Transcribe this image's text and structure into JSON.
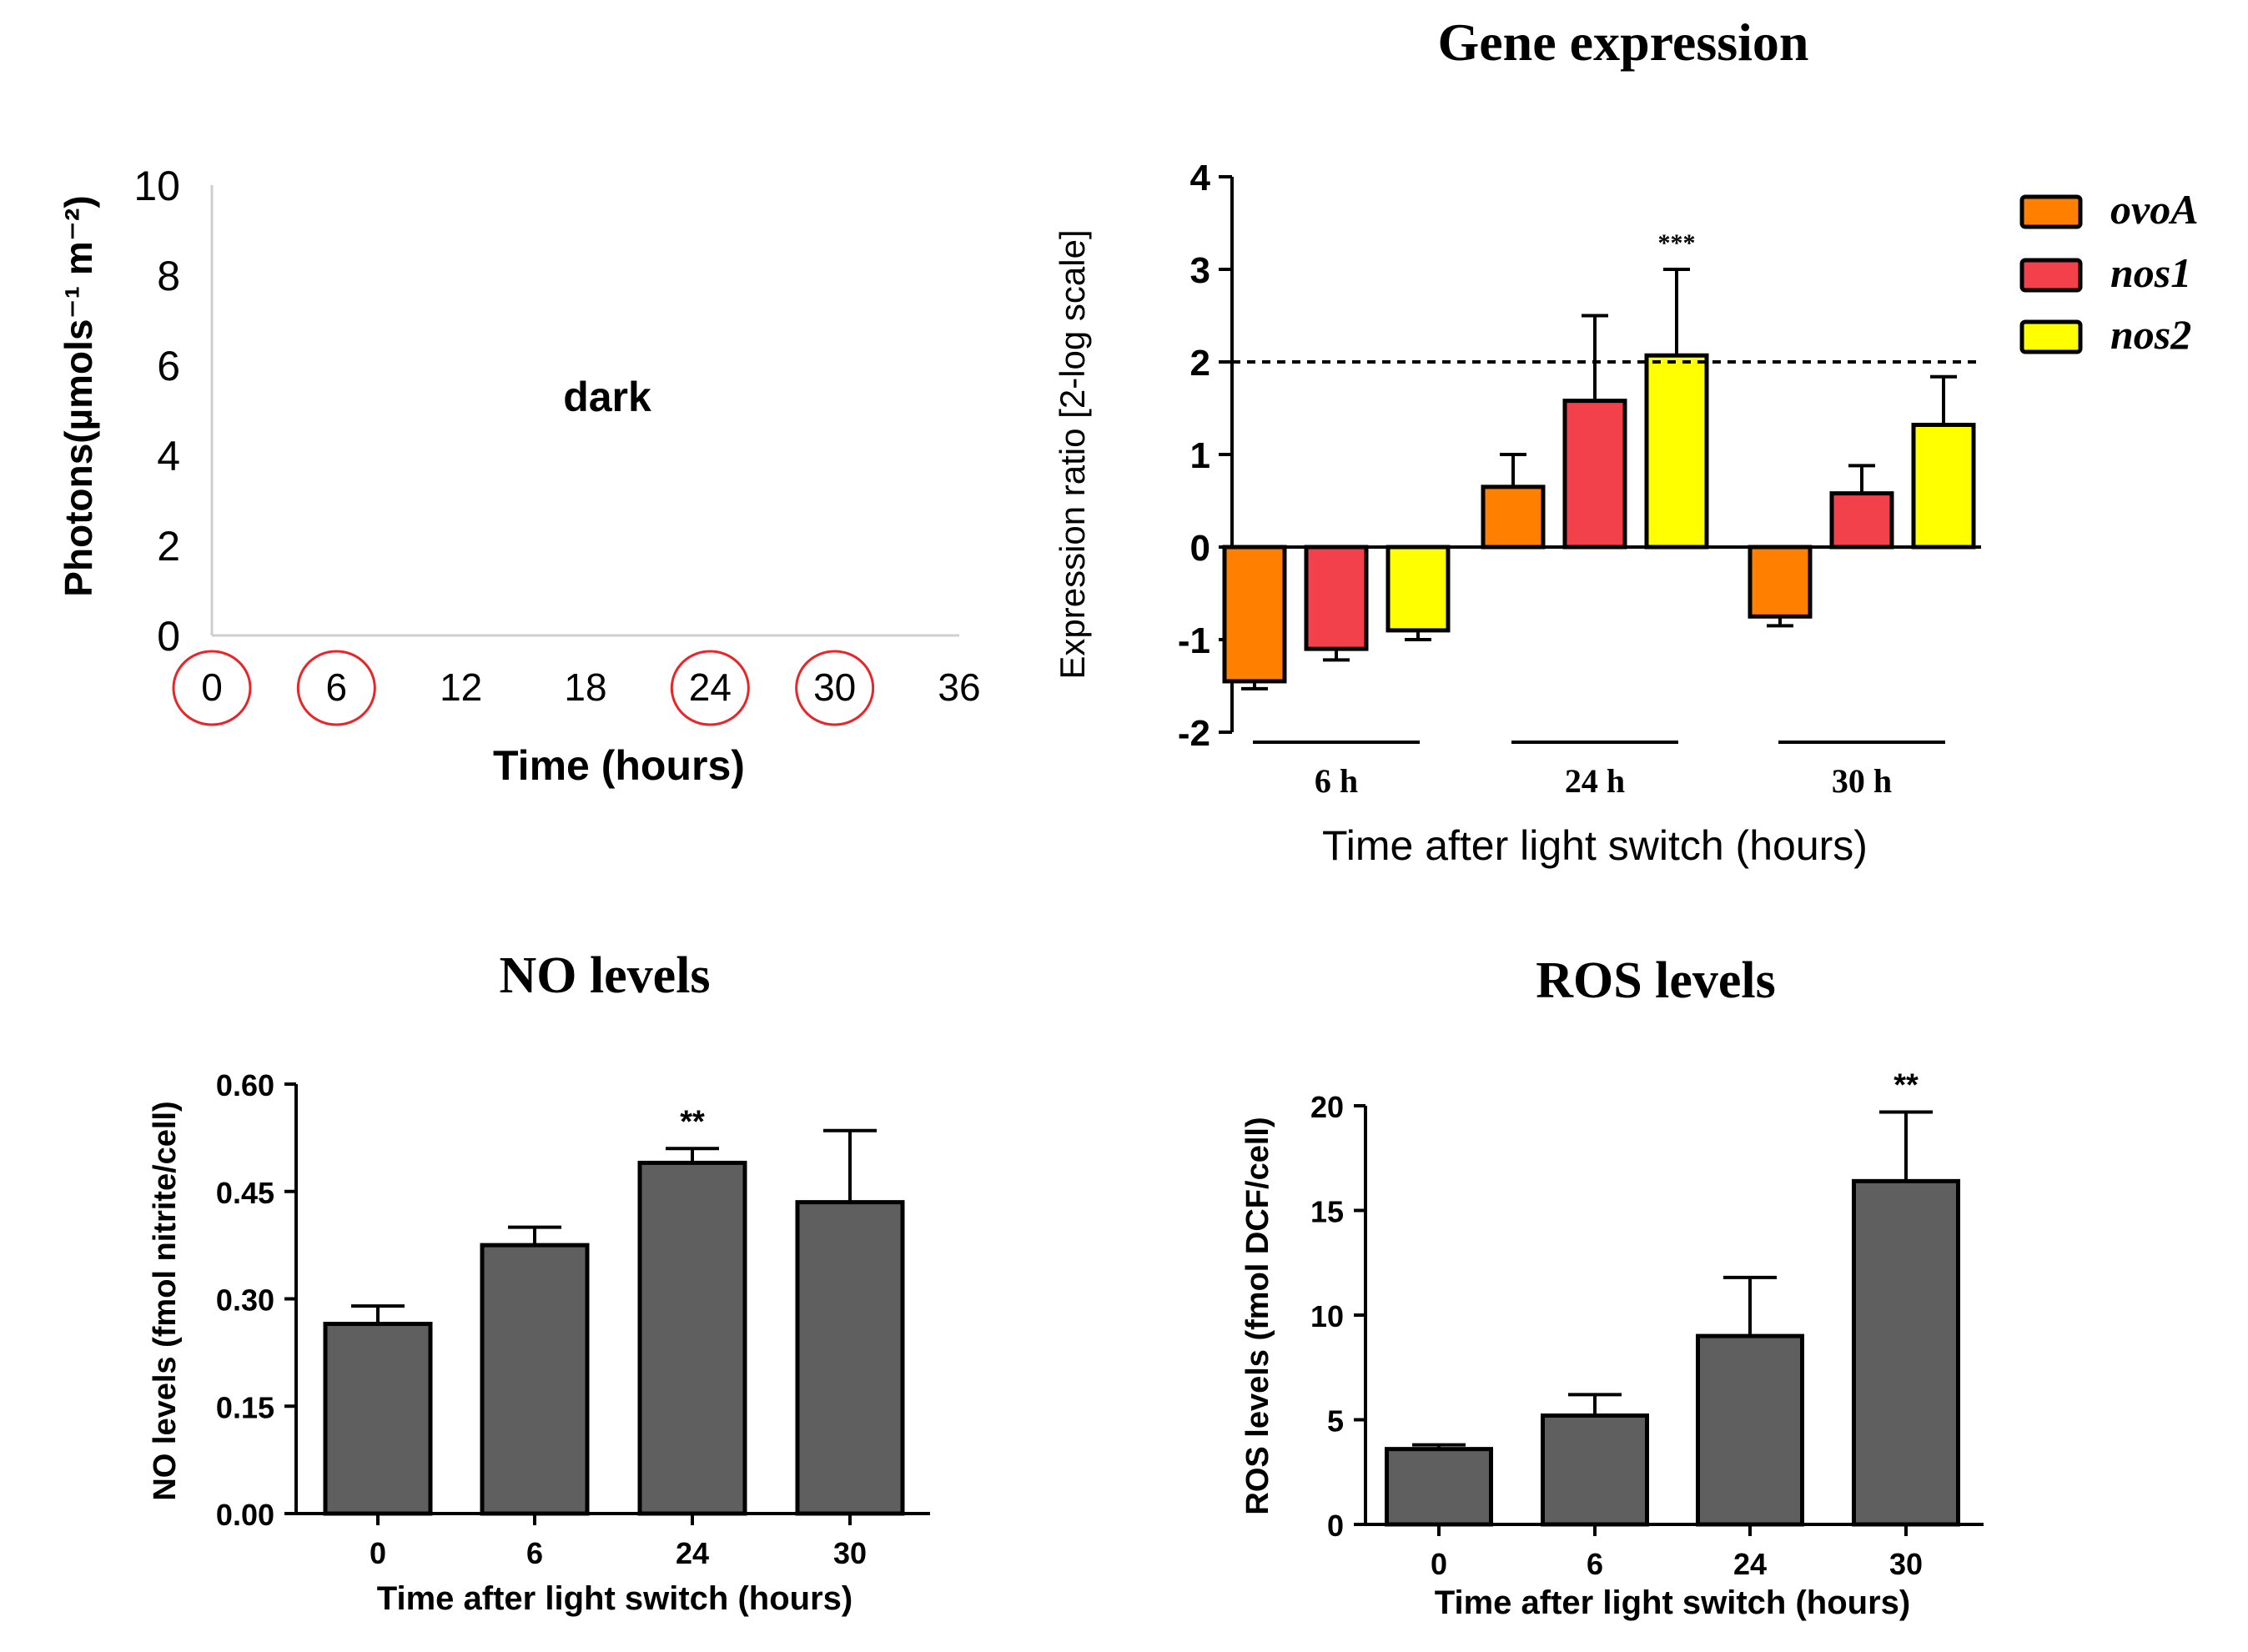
{
  "chart_data": [
    {
      "id": "light",
      "type": "line",
      "title": "",
      "xlabel": "Time (hours)",
      "ylabel": "Photons(µmols⁻¹ m⁻²)",
      "xticks": [
        "0",
        "6",
        "12",
        "18",
        "24",
        "30",
        "36"
      ],
      "xlim": [
        0,
        36
      ],
      "yticks": [
        "0",
        "2",
        "4",
        "6",
        "8",
        "10"
      ],
      "ylim": [
        0,
        10
      ],
      "annotation": "dark",
      "highlighted_ticks": [
        "0",
        "6",
        "24",
        "30"
      ],
      "highlight_color": "#e8262a"
    },
    {
      "id": "gene",
      "type": "bar",
      "title": "Gene expression",
      "xlabel": "Time after light switch (hours)",
      "ylabel": "Expression ratio [2-log scale]",
      "categories": [
        "6 h",
        "24 h",
        "30 h"
      ],
      "ylim": [
        -2,
        4
      ],
      "yticks": [
        "-2",
        "-1",
        "0",
        "1",
        "2",
        "3",
        "4"
      ],
      "threshold": 2,
      "threshold_color": "#e8262a",
      "series": [
        {
          "name": "ovoA",
          "color": "#ff7f00",
          "values": [
            -1.45,
            0.65,
            -0.75
          ],
          "errors": [
            0.08,
            0.35,
            0.1
          ]
        },
        {
          "name": "nos1",
          "color": "#f2414b",
          "values": [
            -1.1,
            1.58,
            0.58
          ],
          "errors": [
            0.12,
            0.92,
            0.3
          ]
        },
        {
          "name": "nos2",
          "color": "#ffff00",
          "values": [
            -0.9,
            2.07,
            1.32
          ],
          "errors": [
            0.1,
            0.93,
            0.52
          ]
        }
      ],
      "significance": [
        {
          "category": "24 h",
          "series": "nos2",
          "label": "***"
        }
      ]
    },
    {
      "id": "no",
      "type": "bar",
      "title": "NO levels",
      "xlabel": "Time after light switch (hours)",
      "ylabel": "NO levels (fmol nitrite/cell)",
      "categories": [
        "0",
        "6",
        "24",
        "30"
      ],
      "values": [
        0.265,
        0.375,
        0.49,
        0.435
      ],
      "errors": [
        0.025,
        0.025,
        0.02,
        0.1
      ],
      "ylim": [
        0,
        0.6
      ],
      "yticks": [
        "0.00",
        "0.15",
        "0.30",
        "0.45",
        "0.60"
      ],
      "bar_color": "#5f5f5f",
      "significance": [
        {
          "category": "24",
          "label": "**"
        }
      ]
    },
    {
      "id": "ros",
      "type": "bar",
      "title": "ROS levels",
      "xlabel": "Time after light switch (hours)",
      "ylabel": "ROS levels (fmol DCF/cell)",
      "categories": [
        "0",
        "6",
        "24",
        "30"
      ],
      "values": [
        3.6,
        5.2,
        9.0,
        16.4
      ],
      "errors": [
        0.2,
        1.0,
        2.8,
        3.3
      ],
      "ylim": [
        0,
        20
      ],
      "yticks": [
        "0",
        "5",
        "10",
        "15",
        "20"
      ],
      "bar_color": "#5f5f5f",
      "significance": [
        {
          "category": "30",
          "label": "**"
        }
      ]
    }
  ]
}
